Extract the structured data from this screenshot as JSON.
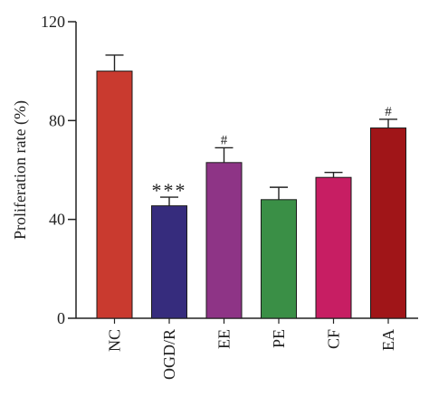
{
  "chart_data": {
    "type": "bar",
    "ylabel": "Proliferation rate (%)",
    "xlabel": "",
    "ylim": [
      0,
      120
    ],
    "yticks": [
      "0",
      "40",
      "80",
      "120"
    ],
    "categories": [
      "NC",
      "OGD/R",
      "EE",
      "PE",
      "CF",
      "EA"
    ],
    "values": [
      100,
      45.5,
      63,
      48,
      57,
      77
    ],
    "errors": [
      6.5,
      3.5,
      6,
      5,
      2,
      3.5
    ],
    "annotations": [
      "",
      "***",
      "#",
      "",
      "",
      "#"
    ],
    "colors": [
      "#c93a2f",
      "#362c7d",
      "#8e3486",
      "#3a8f46",
      "#c71e63",
      "#a01518"
    ],
    "grid": false,
    "legend": "none"
  }
}
